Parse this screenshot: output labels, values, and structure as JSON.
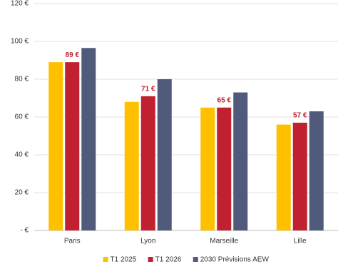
{
  "chart_data": {
    "type": "bar",
    "categories": [
      "Paris",
      "Lyon",
      "Marseille",
      "Lille"
    ],
    "series": [
      {
        "name": "T1 2025",
        "color": "#ffc000",
        "values": [
          89,
          68,
          65,
          56
        ]
      },
      {
        "name": "T1 2026",
        "color": "#c0202f",
        "values": [
          89,
          71,
          65,
          57
        ],
        "value_labels": [
          "89 €",
          "71 €",
          "65 €",
          "57 €"
        ]
      },
      {
        "name": "2030 Prévisions AEW",
        "color": "#505a7a",
        "values": [
          96.5,
          80,
          73,
          63
        ]
      }
    ],
    "ylim": [
      0,
      120
    ],
    "yticks": [
      {
        "value": 0,
        "label": "- €"
      },
      {
        "value": 20,
        "label": "20 €"
      },
      {
        "value": 40,
        "label": "40 €"
      },
      {
        "value": 60,
        "label": "60 €"
      },
      {
        "value": 80,
        "label": "80 €"
      },
      {
        "value": 100,
        "label": "100 €"
      },
      {
        "value": 120,
        "label": "120 €"
      }
    ],
    "grid": true,
    "legend": "bottom"
  }
}
